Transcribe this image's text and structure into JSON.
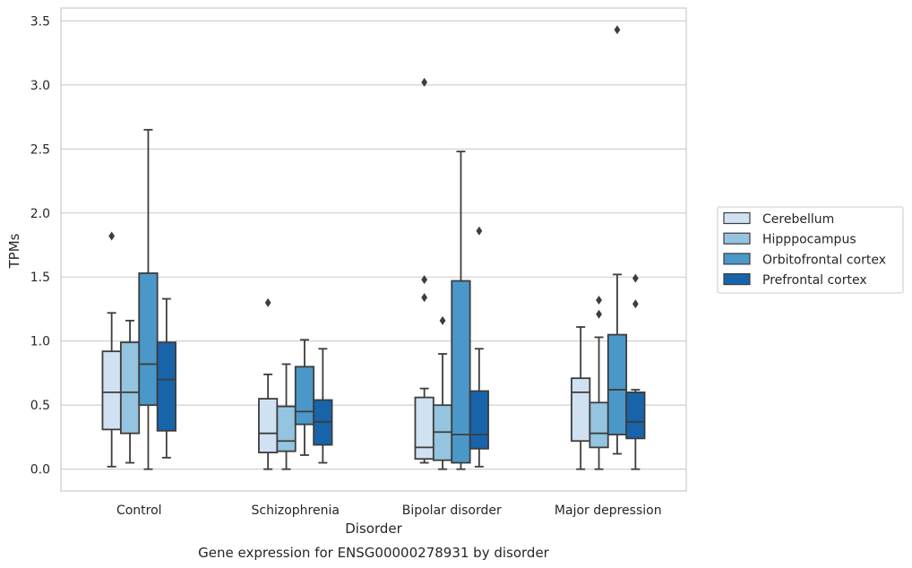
{
  "chart_data": {
    "type": "boxplot",
    "title": "",
    "caption": "Gene expression for ENSG00000278931 by disorder",
    "xlabel": "Disorder",
    "ylabel": "TPMs",
    "ylim": [
      -0.17,
      3.6
    ],
    "yticks": [
      "0.0",
      "0.5",
      "1.0",
      "1.5",
      "2.0",
      "2.5",
      "3.0",
      "3.5"
    ],
    "ytick_values": [
      0,
      0.5,
      1.0,
      1.5,
      2.0,
      2.5,
      3.0,
      3.5
    ],
    "grid": true,
    "legend_position": "right",
    "categories": [
      "Control",
      "Schizophrenia",
      "Bipolar disorder",
      "Major depression"
    ],
    "series": [
      {
        "name": "Cerebellum",
        "color": "#d0e1f2",
        "boxes": [
          {
            "whislo": 0.02,
            "q1": 0.31,
            "med": 0.6,
            "q3": 0.92,
            "whishi": 1.22,
            "fliers": [
              1.82
            ]
          },
          {
            "whislo": 0.0,
            "q1": 0.13,
            "med": 0.28,
            "q3": 0.55,
            "whishi": 0.74,
            "fliers": [
              1.3
            ]
          },
          {
            "whislo": 0.05,
            "q1": 0.08,
            "med": 0.17,
            "q3": 0.56,
            "whishi": 0.63,
            "fliers": [
              1.34,
              1.48,
              3.02
            ]
          },
          {
            "whislo": 0.0,
            "q1": 0.22,
            "med": 0.6,
            "q3": 0.71,
            "whishi": 1.11,
            "fliers": []
          }
        ]
      },
      {
        "name": "Hipppocampus",
        "color": "#94c4df",
        "boxes": [
          {
            "whislo": 0.05,
            "q1": 0.28,
            "med": 0.6,
            "q3": 0.99,
            "whishi": 1.16,
            "fliers": []
          },
          {
            "whislo": 0.0,
            "q1": 0.14,
            "med": 0.22,
            "q3": 0.49,
            "whishi": 0.82,
            "fliers": []
          },
          {
            "whislo": 0.0,
            "q1": 0.07,
            "med": 0.29,
            "q3": 0.5,
            "whishi": 0.9,
            "fliers": [
              1.16
            ]
          },
          {
            "whislo": 0.0,
            "q1": 0.17,
            "med": 0.28,
            "q3": 0.52,
            "whishi": 1.03,
            "fliers": [
              1.21,
              1.32
            ]
          }
        ]
      },
      {
        "name": "Orbitofrontal cortex",
        "color": "#4a98c9",
        "boxes": [
          {
            "whislo": 0.0,
            "q1": 0.5,
            "med": 0.82,
            "q3": 1.53,
            "whishi": 2.65,
            "fliers": []
          },
          {
            "whislo": 0.11,
            "q1": 0.35,
            "med": 0.45,
            "q3": 0.8,
            "whishi": 1.01,
            "fliers": []
          },
          {
            "whislo": 0.0,
            "q1": 0.05,
            "med": 0.27,
            "q3": 1.47,
            "whishi": 2.48,
            "fliers": []
          },
          {
            "whislo": 0.12,
            "q1": 0.27,
            "med": 0.62,
            "q3": 1.05,
            "whishi": 1.52,
            "fliers": [
              3.43
            ]
          }
        ]
      },
      {
        "name": "Prefrontal cortex",
        "color": "#1764ab",
        "boxes": [
          {
            "whislo": 0.09,
            "q1": 0.3,
            "med": 0.7,
            "q3": 0.99,
            "whishi": 1.33,
            "fliers": []
          },
          {
            "whislo": 0.05,
            "q1": 0.19,
            "med": 0.37,
            "q3": 0.54,
            "whishi": 0.94,
            "fliers": []
          },
          {
            "whislo": 0.02,
            "q1": 0.16,
            "med": 0.27,
            "q3": 0.61,
            "whishi": 0.94,
            "fliers": [
              1.86
            ]
          },
          {
            "whislo": 0.0,
            "q1": 0.24,
            "med": 0.37,
            "q3": 0.6,
            "whishi": 0.62,
            "fliers": [
              1.29,
              1.49
            ]
          }
        ]
      }
    ]
  }
}
